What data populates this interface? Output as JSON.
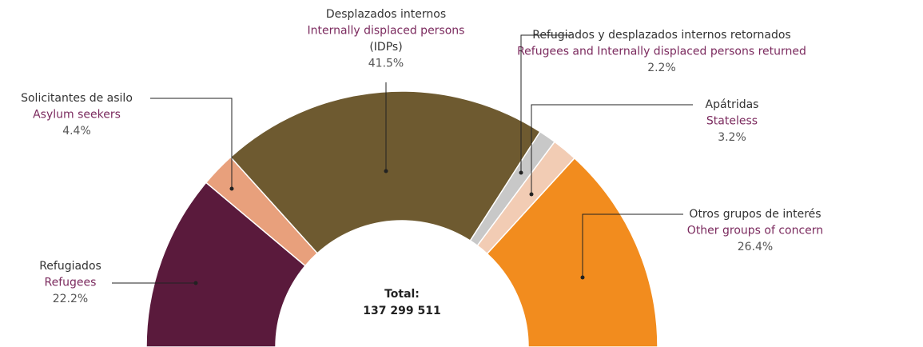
{
  "chart_data": {
    "type": "semi-donut",
    "categories": [
      {
        "name_es": "Refugiados",
        "name_en": "Refugees"
      },
      {
        "name_es": "Solicitantes de asilo",
        "name_en": "Asylum seekers"
      },
      {
        "name_es": "Desplazados internos",
        "name_en": "Internally displaced persons",
        "abbr": "(IDPs)"
      },
      {
        "name_es": "Refugiados y desplazados internos retornados",
        "name_en": "Refugees and Internally displaced persons returned"
      },
      {
        "name_es": "Apátridas",
        "name_en": "Stateless"
      },
      {
        "name_es": "Otros grupos de interés",
        "name_en": "Other groups of concern"
      }
    ],
    "values": [
      22.2,
      4.4,
      41.5,
      2.2,
      3.2,
      26.4
    ],
    "value_labels": [
      "22.2%",
      "4.4%",
      "41.5%",
      "2.2%",
      "3.2%",
      "26.4%"
    ],
    "colors": [
      "#5a1a3c",
      "#e8a07c",
      "#6e5a30",
      "#c8c8c8",
      "#f2ccb4",
      "#f28c1e"
    ],
    "total_title": "Total:",
    "total": 137299511,
    "total_label": "137 299 511"
  }
}
